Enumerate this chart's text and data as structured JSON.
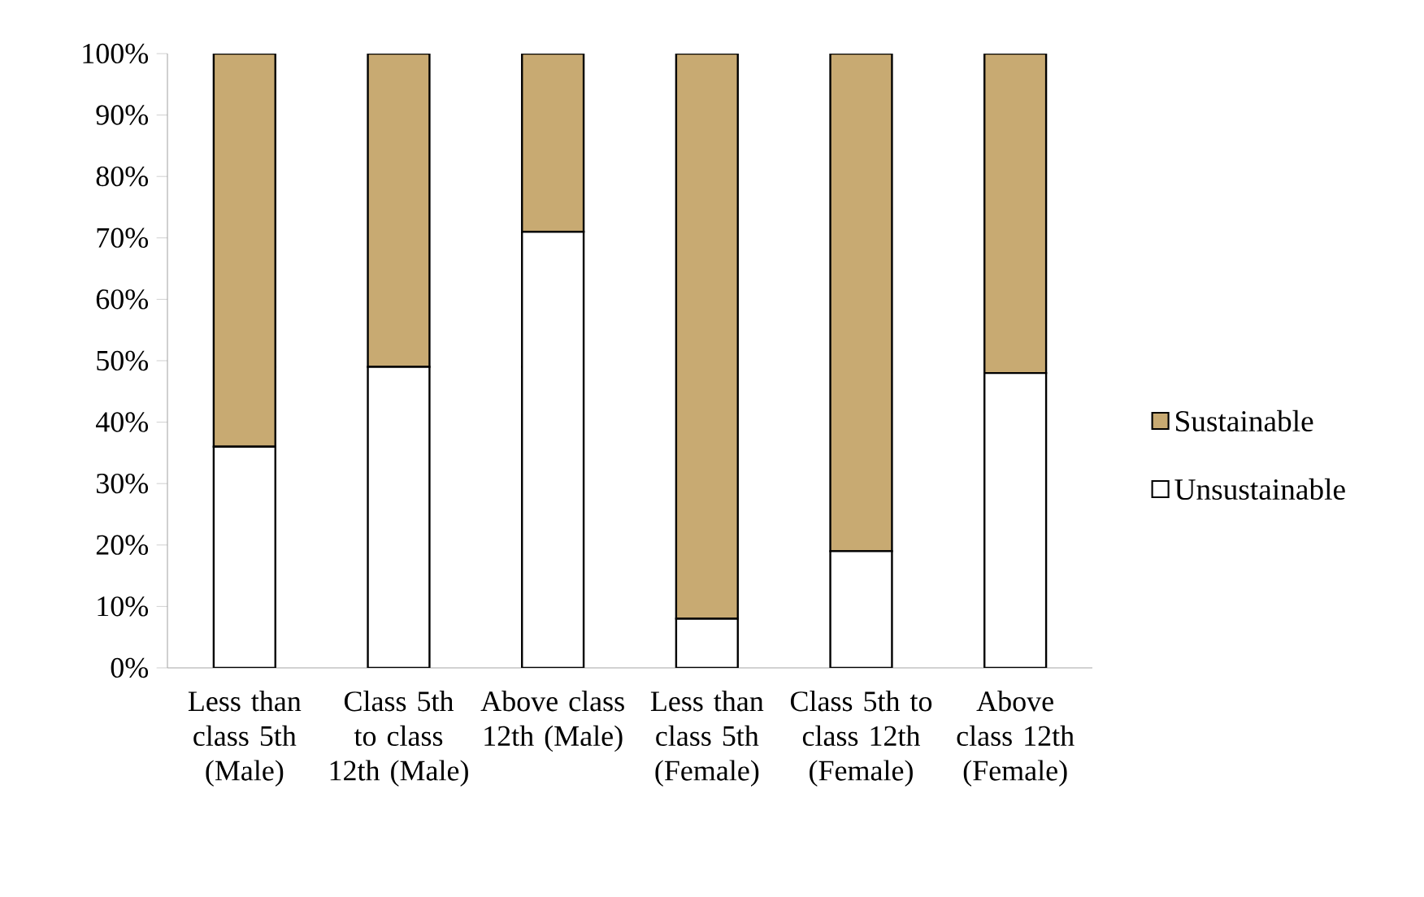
{
  "chart_data": {
    "type": "bar",
    "stacked": true,
    "legend": "right",
    "categories": [
      "Less than class 5th (Male)",
      "Class 5th to class 12th (Male)",
      "Above class 12th (Male)",
      "Less than class 5th (Female)",
      "Class 5th to class 12th (Female)",
      "Above class 12th (Female)"
    ],
    "series": [
      {
        "name": "Unsustainable",
        "color": "#ffffff",
        "values": [
          36,
          49,
          71,
          8,
          19,
          48
        ]
      },
      {
        "name": "Sustainable",
        "color": "#c8aa72",
        "values": [
          64,
          51,
          29,
          92,
          81,
          52
        ]
      }
    ],
    "ylim": [
      0,
      100
    ],
    "yticks": [
      {
        "value": 0,
        "label": "0%"
      },
      {
        "value": 10,
        "label": "10%"
      },
      {
        "value": 20,
        "label": "20%"
      },
      {
        "value": 30,
        "label": "30%"
      },
      {
        "value": 40,
        "label": "40%"
      },
      {
        "value": 50,
        "label": "50%"
      },
      {
        "value": 60,
        "label": "60%"
      },
      {
        "value": 70,
        "label": "70%"
      },
      {
        "value": 80,
        "label": "80%"
      },
      {
        "value": 90,
        "label": "90%"
      },
      {
        "value": 100,
        "label": "100%"
      }
    ]
  }
}
